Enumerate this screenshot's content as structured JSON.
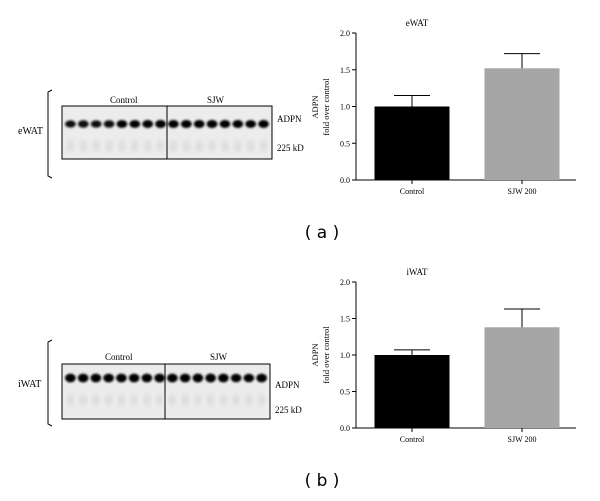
{
  "panels": [
    {
      "panel_label": "( a )",
      "tissue_label": "eWAT",
      "blot": {
        "group_labels": [
          "Control",
          "SJW"
        ],
        "band_label": "ADPN",
        "marker_label": "225 kD",
        "lanes_per_group": [
          8,
          8
        ]
      },
      "bar_color_control": "#000000",
      "bar_color_treated": "#a6a6a6"
    },
    {
      "panel_label": "( b )",
      "tissue_label": "iWAT",
      "blot": {
        "group_labels": [
          "Control",
          "SJW"
        ],
        "band_label": "ADPN",
        "marker_label": "225 kD",
        "lanes_per_group": [
          8,
          8
        ]
      },
      "bar_color_control": "#000000",
      "bar_color_treated": "#a6a6a6"
    }
  ],
  "chart_data": [
    {
      "type": "bar",
      "title": "eWAT",
      "ylabel_line1": "ADPN",
      "ylabel_line2": "fold over control",
      "categories": [
        "Control",
        "SJW 200"
      ],
      "values": [
        1.0,
        1.52
      ],
      "errors": [
        0.15,
        0.2
      ],
      "ylim": [
        0,
        2.0
      ],
      "yticks": [
        "0.0",
        "0.5",
        "1.0",
        "1.5",
        "2.0"
      ],
      "grid": false
    },
    {
      "type": "bar",
      "title": "iWAT",
      "ylabel_line1": "ADPN",
      "ylabel_line2": "fold over control",
      "categories": [
        "Control",
        "SJW 200"
      ],
      "values": [
        1.0,
        1.38
      ],
      "errors": [
        0.07,
        0.25
      ],
      "ylim": [
        0,
        2.0
      ],
      "yticks": [
        "0.0",
        "0.5",
        "1.0",
        "1.5",
        "2.0"
      ],
      "grid": false
    }
  ]
}
